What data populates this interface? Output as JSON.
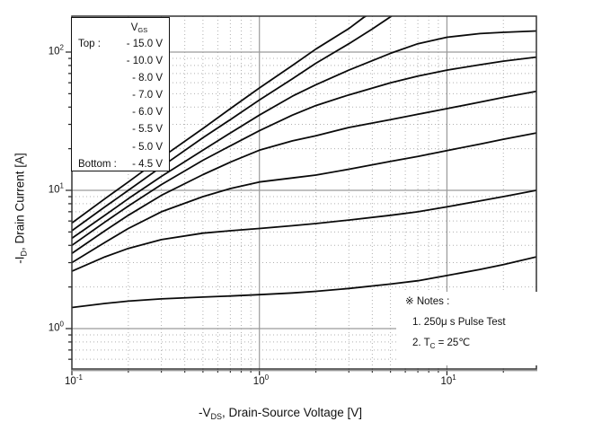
{
  "chart_data": {
    "type": "line",
    "title": "",
    "x_scale": "log",
    "y_scale": "log",
    "xlim": [
      0.1,
      30
    ],
    "ylim": [
      0.51,
      182
    ],
    "grid": "on",
    "xlabel_parts": {
      "p1": "-V",
      "sub": "DS",
      "p2": ", Drain-Source Voltage [V]"
    },
    "ylabel_parts": {
      "p1": "-I",
      "sub": "D",
      "p2": ", Drain Current [A]"
    },
    "x_major_ticks": [
      {
        "v": 0.1,
        "exp": "-1"
      },
      {
        "v": 1,
        "exp": "0"
      },
      {
        "v": 10,
        "exp": "1"
      }
    ],
    "y_major_ticks": [
      {
        "v": 1,
        "exp": "0"
      },
      {
        "v": 10,
        "exp": "1"
      },
      {
        "v": 100,
        "exp": "2"
      }
    ],
    "x_minor_ticks": [
      0.2,
      0.3,
      0.4,
      0.5,
      0.6,
      0.7,
      0.8,
      0.9,
      2,
      3,
      4,
      5,
      6,
      7,
      8,
      9,
      20
    ],
    "y_minor_ticks": [
      0.6,
      0.7,
      0.8,
      0.9,
      2,
      3,
      4,
      5,
      6,
      7,
      8,
      9,
      20,
      30,
      40,
      50,
      60,
      70,
      80,
      90
    ],
    "colors": {
      "curve": "#0a0a0a",
      "major_grid": "#9a9a9a",
      "minor_grid": "#b0b0b0",
      "frame": "#333333"
    },
    "legend": {
      "header_main": "V",
      "header_sub": "GS",
      "first_prefix": "Top :",
      "last_prefix": "Bottom :",
      "entries": [
        "- 15.0 V",
        "- 10.0 V",
        "- 8.0 V",
        "- 7.0 V",
        "- 6.0 V",
        "- 5.5 V",
        "- 5.0 V",
        "- 4.5 V"
      ]
    },
    "notes": {
      "heading": "※ Notes :",
      "line1": "1. 250μ s Pulse Test",
      "line2": {
        "p1": "2. T",
        "sub": "C",
        "p2": " = 25",
        "unit": "℃"
      }
    },
    "series": [
      {
        "name": "VGS = -15.0 V",
        "vgs": -15.0,
        "points": [
          [
            0.1,
            5.8
          ],
          [
            0.15,
            8.7
          ],
          [
            0.2,
            11.5
          ],
          [
            0.3,
            17.2
          ],
          [
            0.5,
            28
          ],
          [
            0.7,
            39
          ],
          [
            1,
            55
          ],
          [
            1.5,
            80
          ],
          [
            2,
            105
          ],
          [
            3,
            148
          ],
          [
            3.6,
            178
          ],
          [
            4.3,
            205
          ]
        ]
      },
      {
        "name": "VGS = -10.0 V",
        "vgs": -10.0,
        "points": [
          [
            0.1,
            5.1
          ],
          [
            0.15,
            7.6
          ],
          [
            0.2,
            10
          ],
          [
            0.3,
            14.8
          ],
          [
            0.5,
            24
          ],
          [
            0.7,
            32.5
          ],
          [
            1,
            45
          ],
          [
            1.5,
            64
          ],
          [
            2,
            83
          ],
          [
            3,
            115
          ],
          [
            4,
            147
          ],
          [
            5,
            180
          ],
          [
            5.5,
            196
          ]
        ]
      },
      {
        "name": "VGS = -8.0 V",
        "vgs": -8.0,
        "points": [
          [
            0.1,
            4.5
          ],
          [
            0.15,
            6.6
          ],
          [
            0.2,
            8.7
          ],
          [
            0.3,
            12.6
          ],
          [
            0.5,
            19.5
          ],
          [
            0.7,
            26
          ],
          [
            1,
            35
          ],
          [
            1.5,
            48
          ],
          [
            2,
            58
          ],
          [
            3,
            74
          ],
          [
            5,
            98
          ],
          [
            7,
            115
          ],
          [
            10,
            128
          ],
          [
            15,
            136
          ],
          [
            20,
            139
          ],
          [
            30,
            142
          ]
        ]
      },
      {
        "name": "VGS = -7.0 V",
        "vgs": -7.0,
        "points": [
          [
            0.1,
            4.0
          ],
          [
            0.15,
            5.9
          ],
          [
            0.2,
            7.7
          ],
          [
            0.3,
            11
          ],
          [
            0.5,
            16.5
          ],
          [
            0.7,
            21
          ],
          [
            1,
            27
          ],
          [
            1.5,
            35
          ],
          [
            2,
            41
          ],
          [
            3,
            49
          ],
          [
            5,
            60
          ],
          [
            7,
            67
          ],
          [
            10,
            74
          ],
          [
            15,
            81
          ],
          [
            20,
            86
          ],
          [
            30,
            92
          ]
        ]
      },
      {
        "name": "VGS = -6.0 V",
        "vgs": -6.0,
        "points": [
          [
            0.1,
            3.5
          ],
          [
            0.15,
            5.1
          ],
          [
            0.2,
            6.6
          ],
          [
            0.3,
            9.2
          ],
          [
            0.5,
            13
          ],
          [
            0.7,
            16
          ],
          [
            1,
            19.5
          ],
          [
            1.5,
            22.8
          ],
          [
            2,
            24.8
          ],
          [
            3,
            28.5
          ],
          [
            5,
            32.5
          ],
          [
            7,
            35.5
          ],
          [
            10,
            39
          ],
          [
            15,
            43.5
          ],
          [
            20,
            47
          ],
          [
            30,
            52
          ]
        ]
      },
      {
        "name": "VGS = -5.5 V",
        "vgs": -5.5,
        "points": [
          [
            0.1,
            3.0
          ],
          [
            0.15,
            4.2
          ],
          [
            0.2,
            5.3
          ],
          [
            0.3,
            7.0
          ],
          [
            0.5,
            9.0
          ],
          [
            0.7,
            10.3
          ],
          [
            1,
            11.5
          ],
          [
            1.5,
            12.3
          ],
          [
            2,
            12.9
          ],
          [
            3,
            14.2
          ],
          [
            5,
            16.2
          ],
          [
            7,
            17.6
          ],
          [
            10,
            19.4
          ],
          [
            15,
            21.6
          ],
          [
            20,
            23.4
          ],
          [
            30,
            26
          ]
        ]
      },
      {
        "name": "VGS = -5.0 V",
        "vgs": -5.0,
        "points": [
          [
            0.1,
            2.6
          ],
          [
            0.15,
            3.3
          ],
          [
            0.2,
            3.8
          ],
          [
            0.3,
            4.4
          ],
          [
            0.5,
            4.9
          ],
          [
            0.7,
            5.1
          ],
          [
            1,
            5.3
          ],
          [
            1.5,
            5.55
          ],
          [
            2,
            5.75
          ],
          [
            3,
            6.1
          ],
          [
            5,
            6.6
          ],
          [
            7,
            7.0
          ],
          [
            10,
            7.6
          ],
          [
            15,
            8.4
          ],
          [
            20,
            9.0
          ],
          [
            30,
            10
          ]
        ]
      },
      {
        "name": "VGS = -4.5 V",
        "vgs": -4.5,
        "points": [
          [
            0.1,
            1.42
          ],
          [
            0.15,
            1.52
          ],
          [
            0.2,
            1.58
          ],
          [
            0.3,
            1.64
          ],
          [
            0.5,
            1.69
          ],
          [
            0.7,
            1.72
          ],
          [
            1,
            1.76
          ],
          [
            1.5,
            1.81
          ],
          [
            2,
            1.86
          ],
          [
            3,
            1.95
          ],
          [
            5,
            2.1
          ],
          [
            7,
            2.22
          ],
          [
            10,
            2.42
          ],
          [
            15,
            2.68
          ],
          [
            20,
            2.9
          ],
          [
            30,
            3.3
          ]
        ]
      }
    ]
  }
}
